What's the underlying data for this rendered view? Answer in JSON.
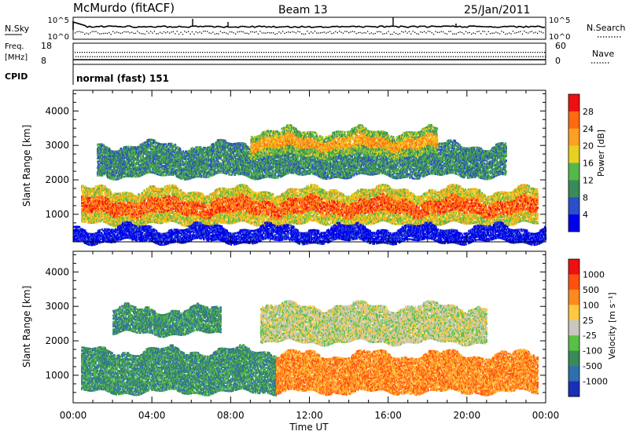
{
  "header": {
    "station": "McMurdo (fitACF)",
    "beam": "Beam 13",
    "date": "25/Jan/2011"
  },
  "summary": {
    "nsky_label": "N.Sky",
    "nsky_ticks": [
      "10^5",
      "10^0"
    ],
    "nsearch_label": "N.Search",
    "nsearch_ticks": [
      "10^5",
      "10^0"
    ],
    "freq_label_1": "Freq.",
    "freq_label_2": "[MHz]",
    "freq_ticks": [
      "18",
      "8"
    ],
    "nave_label": "Nave",
    "nave_ticks": [
      "60",
      "0"
    ],
    "cpid_label": "CPID",
    "cpid_text": "normal (fast) 151"
  },
  "chart_data": [
    {
      "type": "heatmap",
      "name": "power",
      "ylabel": "Slant Range [km]",
      "y_ticks": [
        1000,
        2000,
        3000,
        4000
      ],
      "ylim": [
        200,
        4600
      ],
      "xlim": [
        0,
        24
      ],
      "colorbar_label": "Power [dB]",
      "colorbar_ticks": [
        "28",
        "24",
        "20",
        "16",
        "12",
        "8",
        "4"
      ],
      "colors": [
        "#0000ee",
        "#2a4fc8",
        "#3a8a5a",
        "#55b84a",
        "#e8d020",
        "#ffa020",
        "#ff6a10",
        "#ee1010"
      ],
      "bands": [
        {
          "t0": 0.4,
          "t1": 23.6,
          "r0": 700,
          "r1": 1700,
          "level": 4
        },
        {
          "t0": 1.2,
          "t1": 22.0,
          "r0": 2100,
          "r1": 3000,
          "level": 2
        },
        {
          "t0": 9.0,
          "t1": 18.5,
          "r0": 2700,
          "r1": 3400,
          "level": 3
        },
        {
          "t0": 0.0,
          "t1": 24.0,
          "r0": 200,
          "r1": 600,
          "level": 0
        }
      ]
    },
    {
      "type": "heatmap",
      "name": "velocity",
      "ylabel": "Slant Range [km]",
      "y_ticks": [
        1000,
        2000,
        3000,
        4000
      ],
      "ylim": [
        200,
        4600
      ],
      "xlim": [
        0,
        24
      ],
      "colorbar_label": "Velocity [m s⁻¹]",
      "colorbar_ticks": [
        "1000",
        "500",
        "100",
        "25",
        "-25",
        "-100",
        "-500",
        "-1000"
      ],
      "colors": [
        "#1a2fb8",
        "#2e6fae",
        "#3a8a5a",
        "#58c045",
        "#c8c8c0",
        "#ffc840",
        "#ff8a20",
        "#ff5010",
        "#ee1010"
      ],
      "bands": [
        {
          "t0": 0.4,
          "t1": 10.3,
          "r0": 500,
          "r1": 1700,
          "level": 2
        },
        {
          "t0": 10.3,
          "t1": 23.6,
          "r0": 500,
          "r1": 1600,
          "level": 6
        },
        {
          "t0": 9.5,
          "t1": 21.0,
          "r0": 1950,
          "r1": 3000,
          "level": 4
        },
        {
          "t0": 2.0,
          "t1": 7.5,
          "r0": 2200,
          "r1": 2900,
          "level": 2
        }
      ]
    }
  ],
  "time_axis": {
    "label": "Time UT",
    "ticks": [
      "00:00",
      "04:00",
      "08:00",
      "12:00",
      "16:00",
      "20:00",
      "00:00"
    ]
  }
}
